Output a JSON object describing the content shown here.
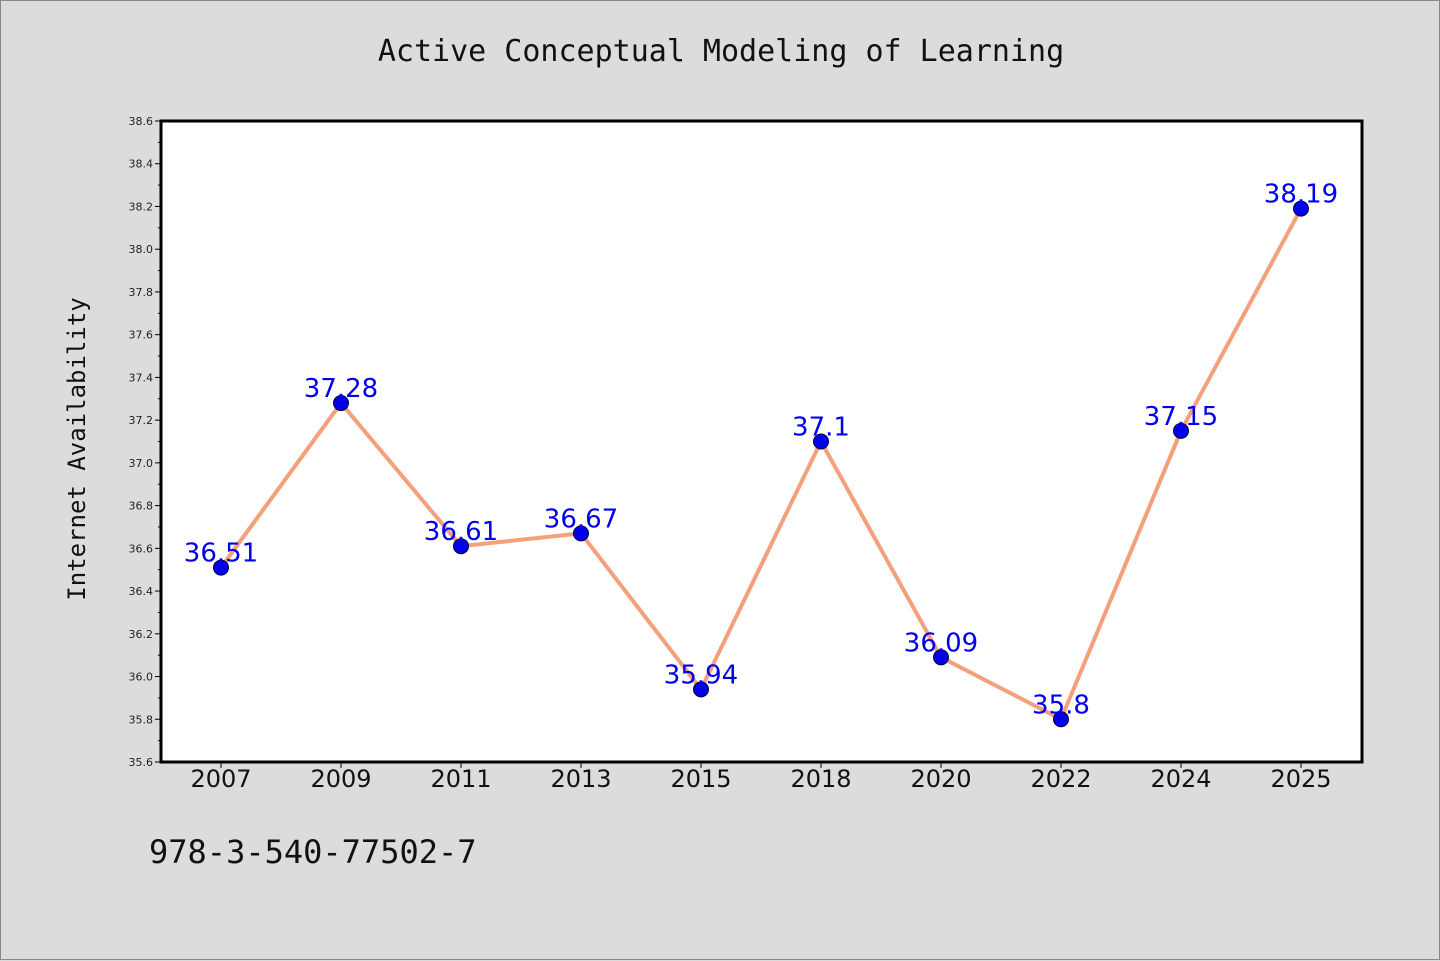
{
  "chart_data": {
    "type": "line",
    "title": "Active Conceptual Modeling of Learning",
    "xlabel": "",
    "ylabel": "Internet Availability",
    "categories": [
      "2007",
      "2009",
      "2011",
      "2013",
      "2015",
      "2018",
      "2020",
      "2022",
      "2024",
      "2025"
    ],
    "series": [
      {
        "values": [
          36.51,
          37.28,
          36.61,
          36.67,
          35.94,
          37.1,
          36.09,
          35.8,
          37.15,
          38.19
        ],
        "data_labels": [
          "36.51",
          "37.28",
          "36.61",
          "36.67",
          "35.94",
          "37.1",
          "36.09",
          "35.8",
          "37.15",
          "38.19"
        ]
      }
    ],
    "ylim": [
      35.6,
      38.6
    ],
    "y_ticks": [
      "35.6",
      "35.8",
      "36.0",
      "36.2",
      "36.4",
      "36.6",
      "36.8",
      "37.0",
      "37.2",
      "37.4",
      "37.6",
      "37.8",
      "38.0",
      "38.2",
      "38.4",
      "38.6"
    ],
    "grid": false,
    "legend": "none",
    "colors": {
      "line": "#f4a07a",
      "marker": "#0000ee",
      "data_label": "#0000ee",
      "plot_background": "#ffffff",
      "figure_background": "#dcdcdc"
    }
  },
  "footnote": "978-3-540-77502-7"
}
